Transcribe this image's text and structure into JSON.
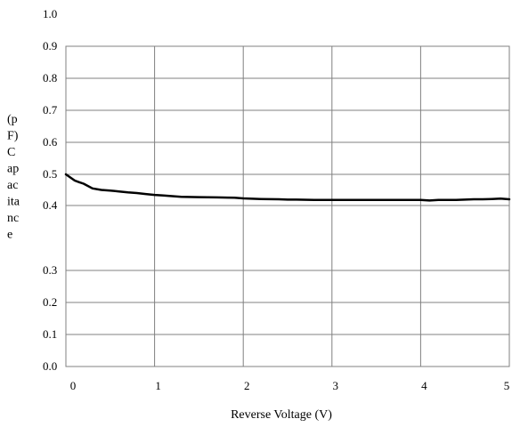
{
  "chart_data": {
    "type": "line",
    "title": "",
    "xlabel": "Reverse Voltage (V)",
    "ylabel_lines": [
      "(p",
      "F)",
      "C",
      "ap",
      "ac",
      "ita",
      "nc",
      "e"
    ],
    "xlim": [
      0,
      5
    ],
    "x_ticks": [
      "0",
      "1",
      "2",
      "3",
      "4",
      "5"
    ],
    "y_ticks": [
      {
        "value": 0.0,
        "label": "0.0"
      },
      {
        "value": 0.1,
        "label": "0.1"
      },
      {
        "value": 0.2,
        "label": "0.2"
      },
      {
        "value": 0.3,
        "label": "0.3"
      },
      {
        "value": 0.4,
        "label": "0.4"
      },
      {
        "value": 0.5,
        "label": "0.5"
      },
      {
        "value": 0.6,
        "label": "0.6"
      },
      {
        "value": 0.7,
        "label": "0.7"
      },
      {
        "value": 0.8,
        "label": "0.8"
      },
      {
        "value": 0.9,
        "label": "0.9"
      },
      {
        "value": 1.0,
        "label": "1.0"
      }
    ],
    "grid": true,
    "line_color": "#000000",
    "grid_color": "#808080",
    "series": [
      {
        "x": [
          0.0,
          0.05,
          0.1,
          0.15,
          0.2,
          0.3,
          0.4,
          0.5,
          0.6,
          0.7,
          0.8,
          0.9,
          1.0,
          1.1,
          1.2,
          1.3,
          1.5,
          1.7,
          1.9,
          2.0,
          2.2,
          2.4,
          2.5,
          2.6,
          2.8,
          3.0,
          3.2,
          3.4,
          3.6,
          3.8,
          4.0,
          4.1,
          4.2,
          4.3,
          4.4,
          4.5,
          4.6,
          4.7,
          4.8,
          4.9,
          5.0
        ],
        "y": [
          0.5,
          0.49,
          0.48,
          0.475,
          0.47,
          0.455,
          0.45,
          0.448,
          0.445,
          0.442,
          0.44,
          0.437,
          0.434,
          0.432,
          0.43,
          0.428,
          0.427,
          0.426,
          0.425,
          0.423,
          0.421,
          0.42,
          0.419,
          0.419,
          0.418,
          0.418,
          0.418,
          0.418,
          0.418,
          0.418,
          0.418,
          0.416,
          0.418,
          0.418,
          0.418,
          0.419,
          0.42,
          0.42,
          0.421,
          0.422,
          0.42
        ]
      }
    ]
  }
}
